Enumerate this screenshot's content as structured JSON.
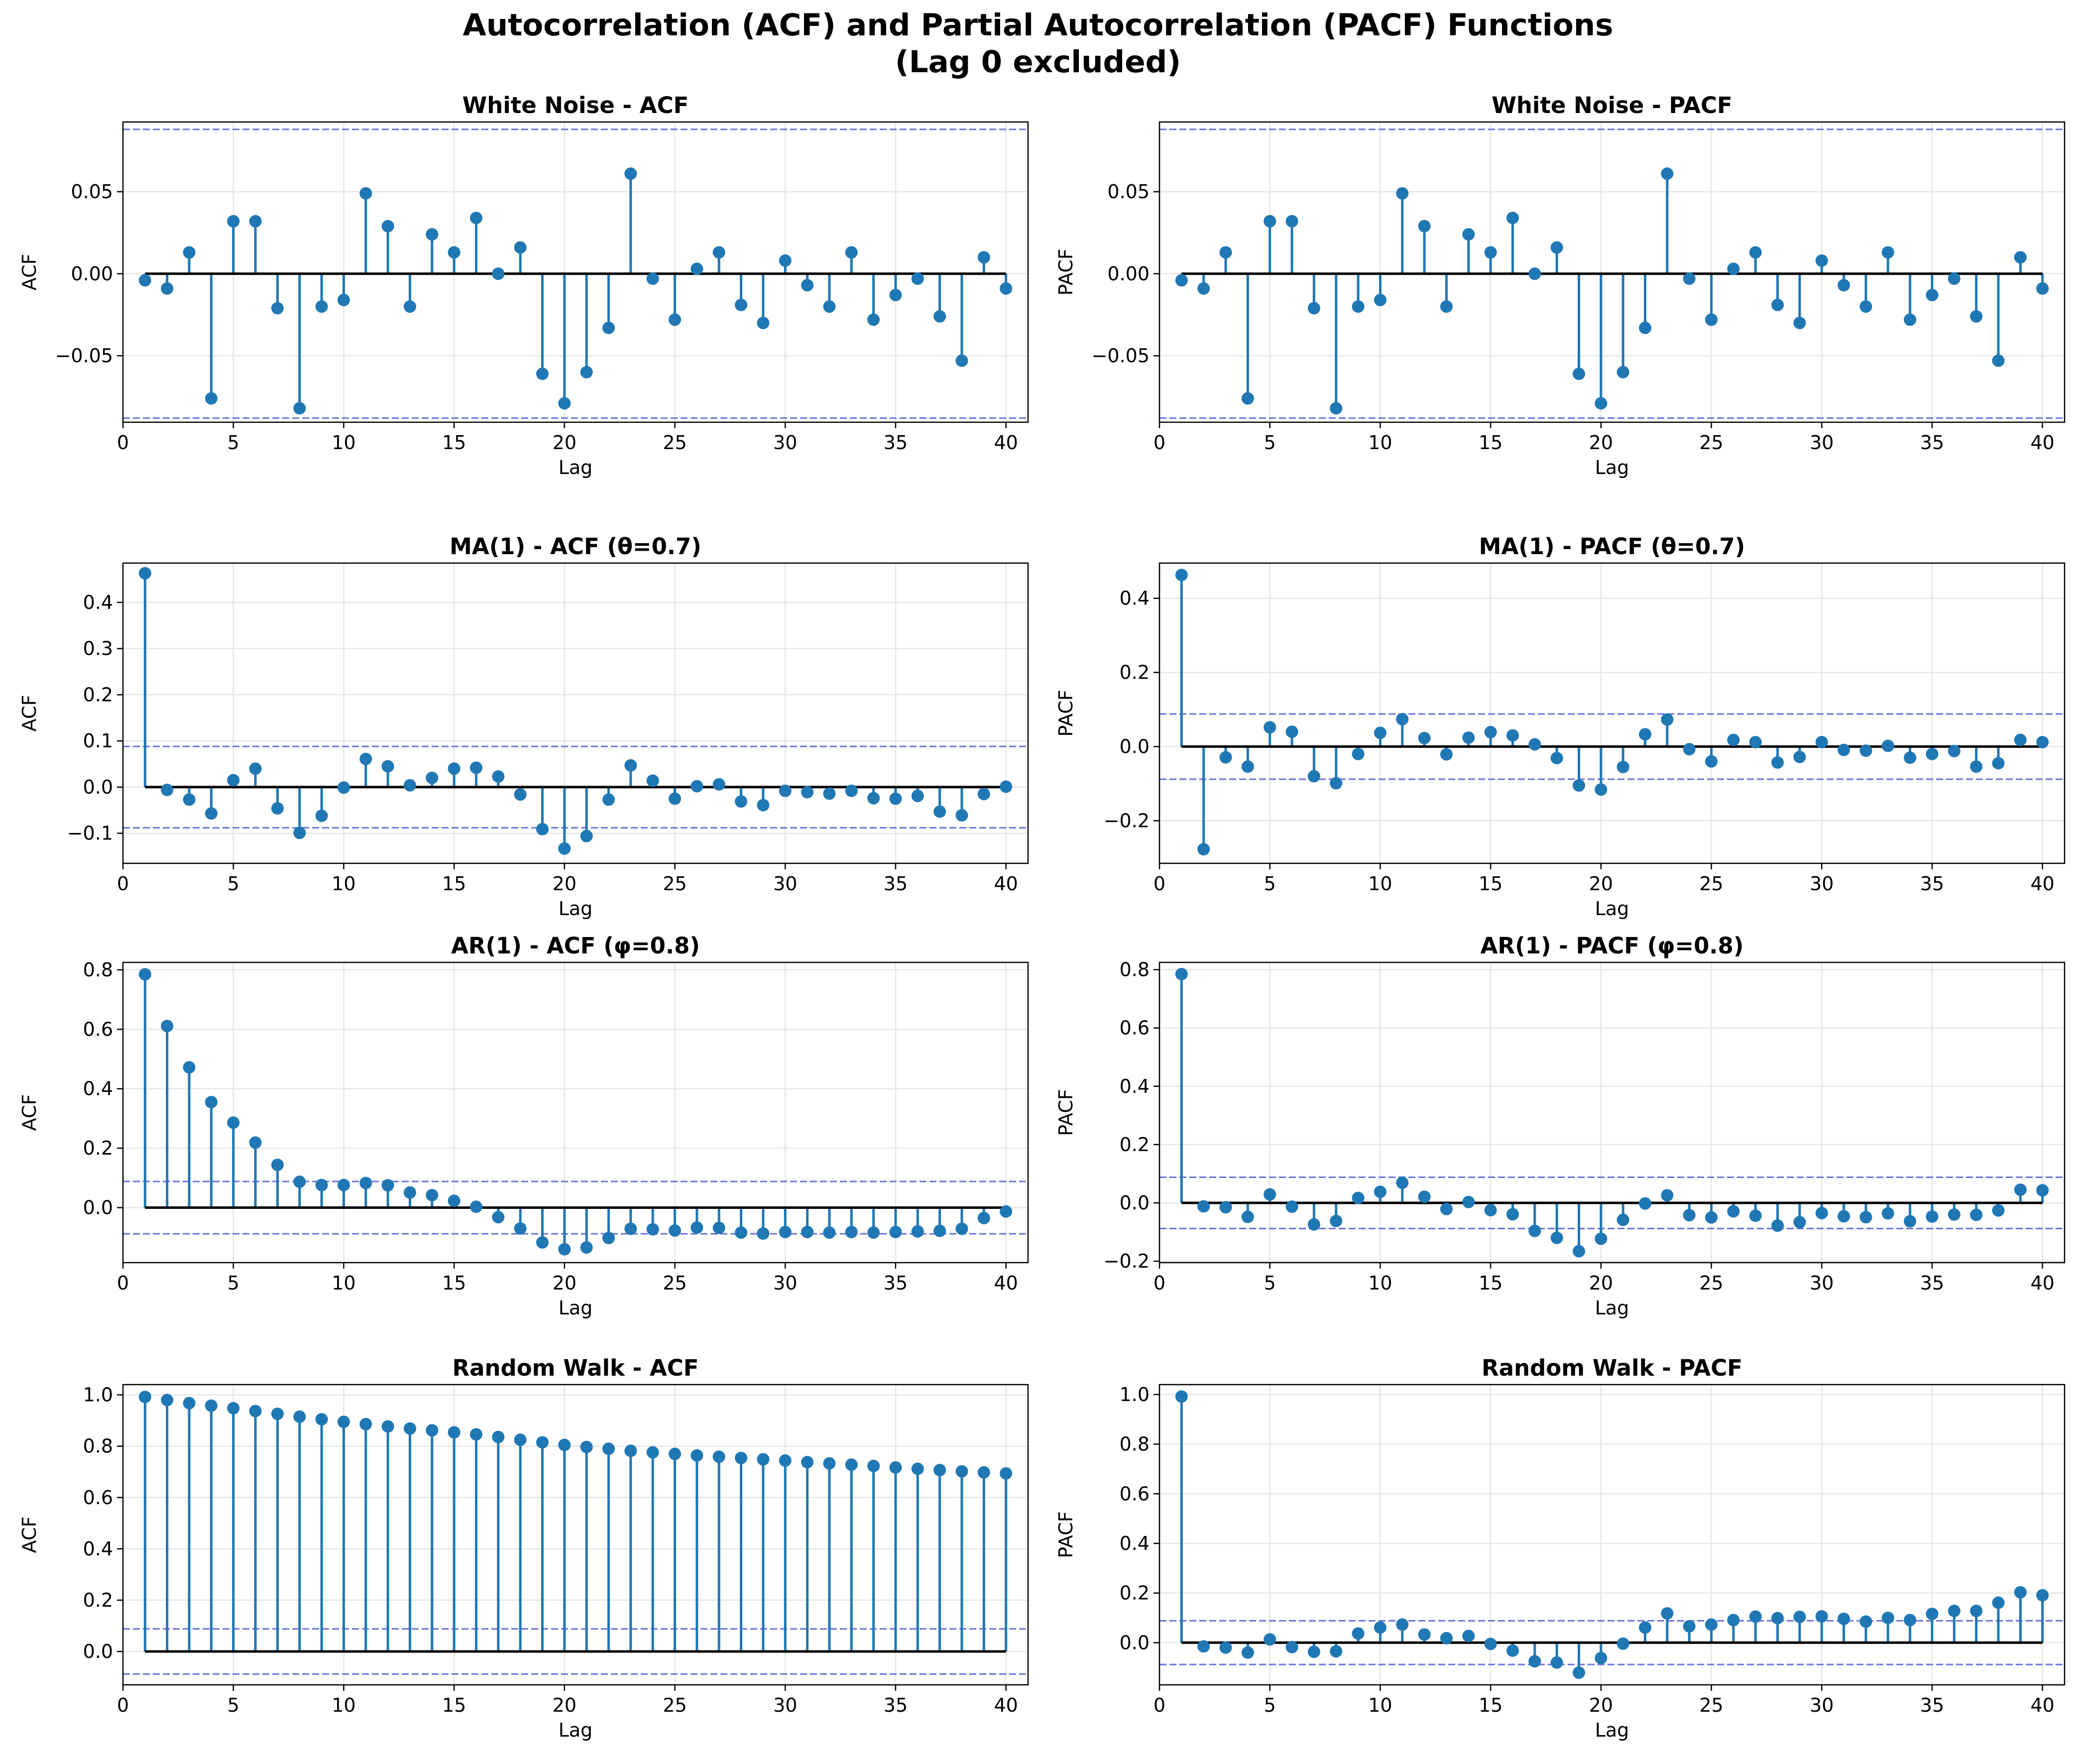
{
  "figure": {
    "title_line1": "Autocorrelation (ACF) and Partial Autocorrelation (PACF) Functions",
    "title_line2": "(Lag 0 excluded)"
  },
  "colors": {
    "stem": "#1f77b4",
    "baseline": "#000000",
    "confidence": "#4f5bd5",
    "grid": "#e6e6e6"
  },
  "chart_data": [
    {
      "type": "stem",
      "title": "White Noise - ACF",
      "xlabel": "Lag",
      "ylabel": "ACF",
      "xlim": [
        0,
        41
      ],
      "ylim": [
        -0.0905,
        0.0925
      ],
      "xticks": [
        0,
        5,
        10,
        15,
        20,
        25,
        30,
        35,
        40
      ],
      "yticks": [
        -0.05,
        0.0,
        0.05
      ],
      "ytick_labels": [
        "−0.05",
        "0.00",
        "0.05"
      ],
      "confidence_band": 0.088,
      "grid": true,
      "x": [
        1,
        2,
        3,
        4,
        5,
        6,
        7,
        8,
        9,
        10,
        11,
        12,
        13,
        14,
        15,
        16,
        17,
        18,
        19,
        20,
        21,
        22,
        23,
        24,
        25,
        26,
        27,
        28,
        29,
        30,
        31,
        32,
        33,
        34,
        35,
        36,
        37,
        38,
        39,
        40
      ],
      "y": [
        -0.004,
        -0.009,
        0.013,
        -0.076,
        0.032,
        0.032,
        -0.021,
        -0.082,
        -0.02,
        -0.016,
        0.049,
        0.029,
        -0.02,
        0.024,
        0.013,
        0.034,
        0.0,
        0.016,
        -0.061,
        -0.079,
        -0.06,
        -0.033,
        0.061,
        -0.003,
        -0.028,
        0.003,
        0.013,
        -0.019,
        -0.03,
        0.008,
        -0.007,
        -0.02,
        0.013,
        -0.028,
        -0.013,
        -0.003,
        -0.026,
        -0.053,
        0.01,
        -0.009
      ]
    },
    {
      "type": "stem",
      "title": "White Noise - PACF",
      "xlabel": "Lag",
      "ylabel": "PACF",
      "xlim": [
        0,
        41
      ],
      "ylim": [
        -0.0905,
        0.0925
      ],
      "xticks": [
        0,
        5,
        10,
        15,
        20,
        25,
        30,
        35,
        40
      ],
      "yticks": [
        -0.05,
        0.0,
        0.05
      ],
      "ytick_labels": [
        "−0.05",
        "0.00",
        "0.05"
      ],
      "confidence_band": 0.088,
      "grid": true,
      "x": [
        1,
        2,
        3,
        4,
        5,
        6,
        7,
        8,
        9,
        10,
        11,
        12,
        13,
        14,
        15,
        16,
        17,
        18,
        19,
        20,
        21,
        22,
        23,
        24,
        25,
        26,
        27,
        28,
        29,
        30,
        31,
        32,
        33,
        34,
        35,
        36,
        37,
        38,
        39,
        40
      ],
      "y": [
        -0.004,
        -0.009,
        0.013,
        -0.076,
        0.032,
        0.032,
        -0.021,
        -0.082,
        -0.02,
        -0.016,
        0.049,
        0.029,
        -0.02,
        0.024,
        0.013,
        0.034,
        0.0,
        0.016,
        -0.061,
        -0.079,
        -0.06,
        -0.033,
        0.061,
        -0.003,
        -0.028,
        0.003,
        0.013,
        -0.019,
        -0.03,
        0.008,
        -0.007,
        -0.02,
        0.013,
        -0.028,
        -0.013,
        -0.003,
        -0.026,
        -0.053,
        0.01,
        -0.009
      ]
    },
    {
      "type": "stem",
      "title": "MA(1) - ACF (θ=0.7)",
      "xlabel": "Lag",
      "ylabel": "ACF",
      "xlim": [
        0,
        41
      ],
      "ylim": [
        -0.165,
        0.485
      ],
      "xticks": [
        0,
        5,
        10,
        15,
        20,
        25,
        30,
        35,
        40
      ],
      "yticks": [
        -0.1,
        0.0,
        0.1,
        0.2,
        0.3,
        0.4
      ],
      "ytick_labels": [
        "−0.1",
        "0.0",
        "0.1",
        "0.2",
        "0.3",
        "0.4"
      ],
      "confidence_band": 0.088,
      "grid": true,
      "x": [
        1,
        2,
        3,
        4,
        5,
        6,
        7,
        8,
        9,
        10,
        11,
        12,
        13,
        14,
        15,
        16,
        17,
        18,
        19,
        20,
        21,
        22,
        23,
        24,
        25,
        26,
        27,
        28,
        29,
        30,
        31,
        32,
        33,
        34,
        35,
        36,
        37,
        38,
        39,
        40
      ],
      "y": [
        0.463,
        -0.006,
        -0.027,
        -0.057,
        0.015,
        0.04,
        -0.046,
        -0.099,
        -0.062,
        -0.001,
        0.061,
        0.045,
        0.004,
        0.02,
        0.04,
        0.042,
        0.023,
        -0.016,
        -0.091,
        -0.133,
        -0.106,
        -0.027,
        0.047,
        0.014,
        -0.025,
        0.002,
        0.006,
        -0.031,
        -0.039,
        -0.008,
        -0.011,
        -0.014,
        -0.008,
        -0.024,
        -0.025,
        -0.019,
        -0.053,
        -0.061,
        -0.015,
        0.001
      ]
    },
    {
      "type": "stem",
      "title": "MA(1) - PACF (θ=0.7)",
      "xlabel": "Lag",
      "ylabel": "PACF",
      "xlim": [
        0,
        41
      ],
      "ylim": [
        -0.315,
        0.495
      ],
      "xticks": [
        0,
        5,
        10,
        15,
        20,
        25,
        30,
        35,
        40
      ],
      "yticks": [
        -0.2,
        0.0,
        0.2,
        0.4
      ],
      "ytick_labels": [
        "−0.2",
        "0.0",
        "0.2",
        "0.4"
      ],
      "confidence_band": 0.088,
      "grid": true,
      "x": [
        1,
        2,
        3,
        4,
        5,
        6,
        7,
        8,
        9,
        10,
        11,
        12,
        13,
        14,
        15,
        16,
        17,
        18,
        19,
        20,
        21,
        22,
        23,
        24,
        25,
        26,
        27,
        28,
        29,
        30,
        31,
        32,
        33,
        34,
        35,
        36,
        37,
        38,
        39,
        40
      ],
      "y": [
        0.463,
        -0.277,
        -0.029,
        -0.054,
        0.052,
        0.04,
        -0.08,
        -0.099,
        -0.02,
        0.037,
        0.074,
        0.023,
        -0.021,
        0.024,
        0.039,
        0.03,
        0.006,
        -0.031,
        -0.105,
        -0.116,
        -0.055,
        0.033,
        0.073,
        -0.007,
        -0.04,
        0.018,
        0.012,
        -0.043,
        -0.028,
        0.012,
        -0.009,
        -0.011,
        0.002,
        -0.03,
        -0.02,
        -0.012,
        -0.054,
        -0.045,
        0.018,
        0.012
      ]
    },
    {
      "type": "stem",
      "title": "AR(1) - ACF (φ=0.8)",
      "xlabel": "Lag",
      "ylabel": "ACF",
      "xlim": [
        0,
        41
      ],
      "ylim": [
        -0.185,
        0.825
      ],
      "xticks": [
        0,
        5,
        10,
        15,
        20,
        25,
        30,
        35,
        40
      ],
      "yticks": [
        0.0,
        0.2,
        0.4,
        0.6,
        0.8
      ],
      "ytick_labels": [
        "0.0",
        "0.2",
        "0.4",
        "0.6",
        "0.8"
      ],
      "confidence_band": 0.088,
      "grid": true,
      "x": [
        1,
        2,
        3,
        4,
        5,
        6,
        7,
        8,
        9,
        10,
        11,
        12,
        13,
        14,
        15,
        16,
        17,
        18,
        19,
        20,
        21,
        22,
        23,
        24,
        25,
        26,
        27,
        28,
        29,
        30,
        31,
        32,
        33,
        34,
        35,
        36,
        37,
        38,
        39,
        40
      ],
      "y": [
        0.785,
        0.611,
        0.472,
        0.355,
        0.286,
        0.219,
        0.144,
        0.087,
        0.076,
        0.076,
        0.083,
        0.075,
        0.051,
        0.042,
        0.023,
        0.003,
        -0.032,
        -0.07,
        -0.117,
        -0.14,
        -0.134,
        -0.102,
        -0.071,
        -0.073,
        -0.077,
        -0.067,
        -0.068,
        -0.084,
        -0.087,
        -0.082,
        -0.082,
        -0.084,
        -0.082,
        -0.084,
        -0.082,
        -0.08,
        -0.078,
        -0.071,
        -0.035,
        -0.013
      ]
    },
    {
      "type": "stem",
      "title": "AR(1) - PACF (φ=0.8)",
      "xlabel": "Lag",
      "ylabel": "PACF",
      "xlim": [
        0,
        41
      ],
      "ylim": [
        -0.205,
        0.825
      ],
      "xticks": [
        0,
        5,
        10,
        15,
        20,
        25,
        30,
        35,
        40
      ],
      "yticks": [
        -0.2,
        0.0,
        0.2,
        0.4,
        0.6,
        0.8
      ],
      "ytick_labels": [
        "−0.2",
        "0.0",
        "0.2",
        "0.4",
        "0.6",
        "0.8"
      ],
      "confidence_band": 0.088,
      "grid": true,
      "x": [
        1,
        2,
        3,
        4,
        5,
        6,
        7,
        8,
        9,
        10,
        11,
        12,
        13,
        14,
        15,
        16,
        17,
        18,
        19,
        20,
        21,
        22,
        23,
        24,
        25,
        26,
        27,
        28,
        29,
        30,
        31,
        32,
        33,
        34,
        35,
        36,
        37,
        38,
        39,
        40
      ],
      "y": [
        0.785,
        -0.012,
        -0.015,
        -0.048,
        0.029,
        -0.013,
        -0.074,
        -0.062,
        0.017,
        0.038,
        0.069,
        0.021,
        -0.021,
        0.003,
        -0.025,
        -0.039,
        -0.096,
        -0.12,
        -0.166,
        -0.123,
        -0.058,
        -0.002,
        0.026,
        -0.042,
        -0.05,
        -0.029,
        -0.044,
        -0.078,
        -0.066,
        -0.035,
        -0.046,
        -0.049,
        -0.036,
        -0.063,
        -0.047,
        -0.04,
        -0.041,
        -0.026,
        0.045,
        0.043
      ]
    },
    {
      "type": "stem",
      "title": "Random Walk - ACF",
      "xlabel": "Lag",
      "ylabel": "ACF",
      "xlim": [
        0,
        41
      ],
      "ylim": [
        -0.13,
        1.04
      ],
      "xticks": [
        0,
        5,
        10,
        15,
        20,
        25,
        30,
        35,
        40
      ],
      "yticks": [
        0.0,
        0.2,
        0.4,
        0.6,
        0.8,
        1.0
      ],
      "ytick_labels": [
        "0.0",
        "0.2",
        "0.4",
        "0.6",
        "0.8",
        "1.0"
      ],
      "confidence_band": 0.088,
      "grid": true,
      "x": [
        1,
        2,
        3,
        4,
        5,
        6,
        7,
        8,
        9,
        10,
        11,
        12,
        13,
        14,
        15,
        16,
        17,
        18,
        19,
        20,
        21,
        22,
        23,
        24,
        25,
        26,
        27,
        28,
        29,
        30,
        31,
        32,
        33,
        34,
        35,
        36,
        37,
        38,
        39,
        40
      ],
      "y": [
        0.992,
        0.98,
        0.968,
        0.958,
        0.948,
        0.937,
        0.926,
        0.915,
        0.905,
        0.895,
        0.886,
        0.877,
        0.869,
        0.862,
        0.854,
        0.846,
        0.836,
        0.825,
        0.815,
        0.805,
        0.797,
        0.79,
        0.782,
        0.776,
        0.77,
        0.764,
        0.759,
        0.754,
        0.749,
        0.744,
        0.738,
        0.733,
        0.728,
        0.723,
        0.717,
        0.712,
        0.707,
        0.702,
        0.698,
        0.694
      ]
    },
    {
      "type": "stem",
      "title": "Random Walk - PACF",
      "xlabel": "Lag",
      "ylabel": "PACF",
      "xlim": [
        0,
        41
      ],
      "ylim": [
        -0.17,
        1.04
      ],
      "xticks": [
        0,
        5,
        10,
        15,
        20,
        25,
        30,
        35,
        40
      ],
      "yticks": [
        0.0,
        0.2,
        0.4,
        0.6,
        0.8,
        1.0
      ],
      "ytick_labels": [
        "0.0",
        "0.2",
        "0.4",
        "0.6",
        "0.8",
        "1.0"
      ],
      "confidence_band": 0.088,
      "grid": true,
      "x": [
        1,
        2,
        3,
        4,
        5,
        6,
        7,
        8,
        9,
        10,
        11,
        12,
        13,
        14,
        15,
        16,
        17,
        18,
        19,
        20,
        21,
        22,
        23,
        24,
        25,
        26,
        27,
        28,
        29,
        30,
        31,
        32,
        33,
        34,
        35,
        36,
        37,
        38,
        39,
        40
      ],
      "y": [
        0.992,
        -0.015,
        -0.02,
        -0.04,
        0.013,
        -0.018,
        -0.037,
        -0.035,
        0.037,
        0.061,
        0.073,
        0.033,
        0.018,
        0.027,
        -0.005,
        -0.032,
        -0.075,
        -0.08,
        -0.121,
        -0.062,
        -0.004,
        0.061,
        0.118,
        0.066,
        0.073,
        0.091,
        0.105,
        0.099,
        0.104,
        0.106,
        0.096,
        0.085,
        0.1,
        0.091,
        0.116,
        0.128,
        0.128,
        0.161,
        0.203,
        0.191
      ]
    }
  ]
}
